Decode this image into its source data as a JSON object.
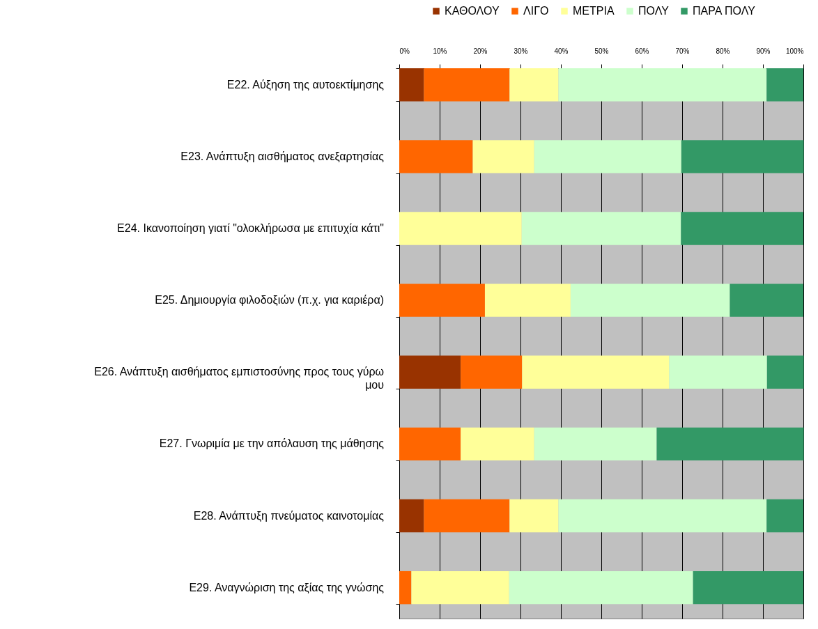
{
  "chart_data": {
    "type": "bar",
    "orientation": "horizontal",
    "stacked": true,
    "categories": [
      "Ε22. Αύξηση της αυτοεκτίμησης",
      "Ε23. Ανάπτυξη αισθήματος ανεξαρτησίας",
      "Ε24. Ικανοποίηση γιατί \"ολοκλήρωσα με επιτυχία κάτι\"",
      "Ε25. Δημιουργία φιλοδοξιών (π.χ. για καριέρα)",
      "Ε26. Ανάπτυξη αισθήματος εμπιστοσύνης προς τους γύρω μου",
      "Ε27. Γνωριμία με την απόλαυση της μάθησης",
      "Ε28. Ανάπτυξη πνεύματος καινοτομίας",
      "Ε29. Αναγνώριση της αξίας της γνώσης"
    ],
    "series": [
      {
        "name": "ΚΑΘΟΛΟΥ",
        "color": "#993300",
        "values": [
          6.1,
          0,
          0,
          0,
          15.2,
          0,
          6.1,
          0
        ]
      },
      {
        "name": "ΛΙΓΟ",
        "color": "#ff6600",
        "values": [
          21.2,
          18.2,
          0,
          21.2,
          15.2,
          15.2,
          21.2,
          3.0
        ]
      },
      {
        "name": "ΜΕΤΡΙΑ",
        "color": "#ffff99",
        "values": [
          12.1,
          15.2,
          30.3,
          21.2,
          36.4,
          18.2,
          12.1,
          24.2
        ]
      },
      {
        "name": "ΠΟΛΥ",
        "color": "#ccffcc",
        "values": [
          51.5,
          36.4,
          39.4,
          39.4,
          24.2,
          30.3,
          51.5,
          45.5
        ]
      },
      {
        "name": "ΠΑΡΑ ΠΟΛΥ",
        "color": "#339966",
        "values": [
          9.1,
          30.3,
          30.3,
          18.2,
          9.1,
          36.4,
          9.1,
          27.3
        ]
      }
    ],
    "xlim": [
      0,
      100
    ],
    "xticks": [
      {
        "value": 0,
        "label": "0%"
      },
      {
        "value": 10,
        "label": "10%"
      },
      {
        "value": 20,
        "label": "20%"
      },
      {
        "value": 30,
        "label": "30%"
      },
      {
        "value": 40,
        "label": "40%"
      },
      {
        "value": 50,
        "label": "50%"
      },
      {
        "value": 60,
        "label": "60%"
      },
      {
        "value": 70,
        "label": "70%"
      },
      {
        "value": 80,
        "label": "80%"
      },
      {
        "value": 90,
        "label": "90%"
      },
      {
        "value": 100,
        "label": "100%"
      }
    ],
    "grid": "x",
    "legend": "top right"
  }
}
